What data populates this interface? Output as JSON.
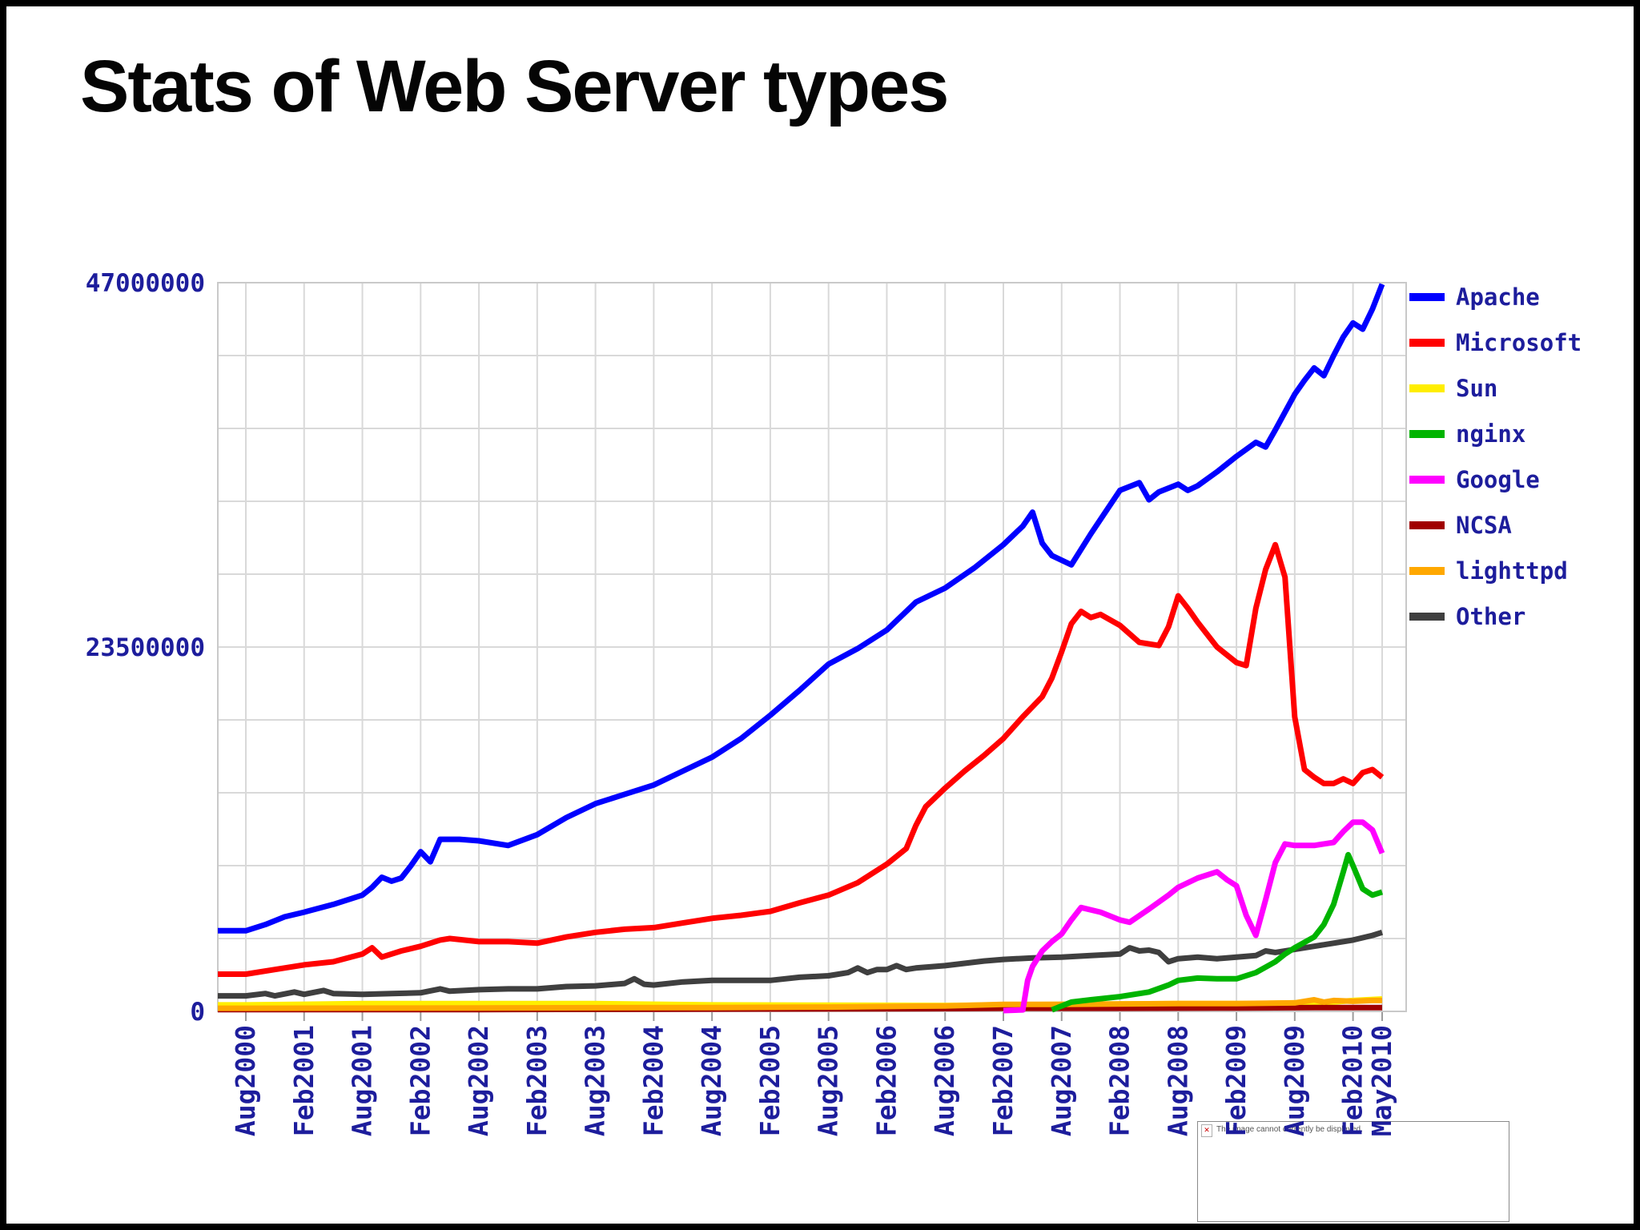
{
  "slide": {
    "title": "Stats of Web Server types"
  },
  "placeholder": {
    "text": "The image cannot currently be displayed."
  },
  "colors": {
    "axis_label": "#1d1d9c",
    "grid": "#d9d9d9",
    "frame": "#c9c9c9",
    "tick": "#9c9c9c",
    "title": "#050505"
  },
  "chart_data": {
    "type": "line",
    "title": "",
    "xlabel": "",
    "ylabel": "",
    "values_unit": "millions_of_sites",
    "ylim": [
      0,
      47000000
    ],
    "y_gridline_step": 4700000,
    "grid": true,
    "legend_position": "right",
    "y_ticks": [
      {
        "value": 47000000,
        "label": "47000000"
      },
      {
        "value": 23500000,
        "label": "23500000"
      },
      {
        "value": 0,
        "label": "0"
      }
    ],
    "x_max_month": 117,
    "x_ticks": [
      {
        "month": 0,
        "label": "Aug2000"
      },
      {
        "month": 6,
        "label": "Feb2001"
      },
      {
        "month": 12,
        "label": "Aug2001"
      },
      {
        "month": 18,
        "label": "Feb2002"
      },
      {
        "month": 24,
        "label": "Aug2002"
      },
      {
        "month": 30,
        "label": "Feb2003"
      },
      {
        "month": 36,
        "label": "Aug2003"
      },
      {
        "month": 42,
        "label": "Feb2004"
      },
      {
        "month": 48,
        "label": "Aug2004"
      },
      {
        "month": 54,
        "label": "Feb2005"
      },
      {
        "month": 60,
        "label": "Aug2005"
      },
      {
        "month": 66,
        "label": "Feb2006"
      },
      {
        "month": 72,
        "label": "Aug2006"
      },
      {
        "month": 78,
        "label": "Feb2007"
      },
      {
        "month": 84,
        "label": "Aug2007"
      },
      {
        "month": 90,
        "label": "Feb2008"
      },
      {
        "month": 96,
        "label": "Aug2008"
      },
      {
        "month": 102,
        "label": "Feb2009"
      },
      {
        "month": 108,
        "label": "Aug2009"
      },
      {
        "month": 114,
        "label": "Feb2010"
      },
      {
        "month": 117,
        "label": "May2010"
      }
    ],
    "series": [
      {
        "name": "Apache",
        "color": "#0000ff",
        "points": [
          [
            0,
            5.2
          ],
          [
            2,
            5.6
          ],
          [
            4,
            6.1
          ],
          [
            6,
            6.4
          ],
          [
            9,
            6.9
          ],
          [
            12,
            7.5
          ],
          [
            13,
            8.0
          ],
          [
            14,
            8.65
          ],
          [
            15,
            8.4
          ],
          [
            16,
            8.6
          ],
          [
            17,
            9.4
          ],
          [
            18,
            10.3
          ],
          [
            19,
            9.65
          ],
          [
            20,
            11.1
          ],
          [
            22,
            11.1
          ],
          [
            24,
            11.0
          ],
          [
            27,
            10.7
          ],
          [
            30,
            11.4
          ],
          [
            33,
            12.5
          ],
          [
            36,
            13.4
          ],
          [
            39,
            14.0
          ],
          [
            42,
            14.6
          ],
          [
            45,
            15.5
          ],
          [
            48,
            16.4
          ],
          [
            51,
            17.6
          ],
          [
            54,
            19.1
          ],
          [
            57,
            20.7
          ],
          [
            60,
            22.4
          ],
          [
            63,
            23.4
          ],
          [
            66,
            24.6
          ],
          [
            69,
            26.4
          ],
          [
            72,
            27.3
          ],
          [
            75,
            28.6
          ],
          [
            78,
            30.1
          ],
          [
            80,
            31.3
          ],
          [
            81,
            32.2
          ],
          [
            82,
            30.2
          ],
          [
            83,
            29.4
          ],
          [
            85,
            28.8
          ],
          [
            87,
            30.8
          ],
          [
            90,
            33.6
          ],
          [
            92,
            34.1
          ],
          [
            93,
            33.0
          ],
          [
            94,
            33.5
          ],
          [
            96,
            34.0
          ],
          [
            97,
            33.6
          ],
          [
            98,
            33.9
          ],
          [
            100,
            34.8
          ],
          [
            102,
            35.8
          ],
          [
            104,
            36.7
          ],
          [
            105,
            36.4
          ],
          [
            106,
            37.5
          ],
          [
            108,
            39.8
          ],
          [
            109,
            40.7
          ],
          [
            110,
            41.5
          ],
          [
            111,
            41.0
          ],
          [
            112,
            42.3
          ],
          [
            113,
            43.5
          ],
          [
            114,
            44.4
          ],
          [
            115,
            44.0
          ],
          [
            116,
            45.3
          ],
          [
            117,
            46.9
          ]
        ]
      },
      {
        "name": "Microsoft",
        "color": "#ff0000",
        "points": [
          [
            0,
            2.4
          ],
          [
            3,
            2.7
          ],
          [
            6,
            3.0
          ],
          [
            9,
            3.2
          ],
          [
            12,
            3.7
          ],
          [
            13,
            4.1
          ],
          [
            14,
            3.5
          ],
          [
            16,
            3.9
          ],
          [
            18,
            4.2
          ],
          [
            20,
            4.6
          ],
          [
            21,
            4.7
          ],
          [
            24,
            4.5
          ],
          [
            27,
            4.5
          ],
          [
            30,
            4.4
          ],
          [
            33,
            4.8
          ],
          [
            36,
            5.1
          ],
          [
            39,
            5.3
          ],
          [
            42,
            5.4
          ],
          [
            45,
            5.7
          ],
          [
            48,
            6.0
          ],
          [
            51,
            6.2
          ],
          [
            54,
            6.45
          ],
          [
            57,
            7.0
          ],
          [
            60,
            7.5
          ],
          [
            63,
            8.3
          ],
          [
            66,
            9.5
          ],
          [
            68,
            10.5
          ],
          [
            69,
            12.0
          ],
          [
            70,
            13.2
          ],
          [
            72,
            14.4
          ],
          [
            74,
            15.5
          ],
          [
            76,
            16.5
          ],
          [
            78,
            17.6
          ],
          [
            80,
            19.0
          ],
          [
            82,
            20.3
          ],
          [
            83,
            21.5
          ],
          [
            84,
            23.2
          ],
          [
            85,
            25.0
          ],
          [
            86,
            25.8
          ],
          [
            87,
            25.4
          ],
          [
            88,
            25.6
          ],
          [
            90,
            24.9
          ],
          [
            92,
            23.8
          ],
          [
            94,
            23.6
          ],
          [
            95,
            24.8
          ],
          [
            96,
            26.8
          ],
          [
            97,
            26.0
          ],
          [
            98,
            25.1
          ],
          [
            100,
            23.5
          ],
          [
            102,
            22.5
          ],
          [
            103,
            22.3
          ],
          [
            104,
            26.0
          ],
          [
            105,
            28.5
          ],
          [
            106,
            30.1
          ],
          [
            107,
            28.0
          ],
          [
            108,
            19.0
          ],
          [
            109,
            15.6
          ],
          [
            110,
            15.1
          ],
          [
            111,
            14.7
          ],
          [
            112,
            14.7
          ],
          [
            113,
            15.0
          ],
          [
            114,
            14.7
          ],
          [
            115,
            15.4
          ],
          [
            116,
            15.6
          ],
          [
            117,
            15.1
          ]
        ]
      },
      {
        "name": "Sun",
        "color": "#ffee00",
        "points": [
          [
            0,
            0.42
          ],
          [
            12,
            0.5
          ],
          [
            24,
            0.5
          ],
          [
            36,
            0.5
          ],
          [
            48,
            0.42
          ],
          [
            60,
            0.4
          ],
          [
            72,
            0.38
          ],
          [
            84,
            0.45
          ],
          [
            96,
            0.5
          ],
          [
            104,
            0.5
          ],
          [
            108,
            0.55
          ],
          [
            112,
            0.6
          ],
          [
            114,
            0.7
          ],
          [
            117,
            0.8
          ]
        ]
      },
      {
        "name": "nginx",
        "color": "#00b400",
        "points": [
          [
            83,
            0.1
          ],
          [
            85,
            0.6
          ],
          [
            87,
            0.75
          ],
          [
            90,
            0.95
          ],
          [
            93,
            1.25
          ],
          [
            95,
            1.7
          ],
          [
            96,
            2.0
          ],
          [
            98,
            2.15
          ],
          [
            100,
            2.1
          ],
          [
            102,
            2.1
          ],
          [
            104,
            2.5
          ],
          [
            106,
            3.2
          ],
          [
            107,
            3.7
          ],
          [
            108,
            4.1
          ],
          [
            110,
            4.8
          ],
          [
            111,
            5.6
          ],
          [
            112,
            6.9
          ],
          [
            113,
            9.0
          ],
          [
            113.5,
            10.1
          ],
          [
            114,
            9.4
          ],
          [
            115,
            7.9
          ],
          [
            116,
            7.5
          ],
          [
            117,
            7.7
          ]
        ]
      },
      {
        "name": "Google",
        "color": "#ff00ff",
        "points": [
          [
            78,
            0.05
          ],
          [
            80,
            0.1
          ],
          [
            80.5,
            2.0
          ],
          [
            81,
            2.9
          ],
          [
            82,
            3.9
          ],
          [
            83,
            4.5
          ],
          [
            84,
            5.0
          ],
          [
            85,
            5.9
          ],
          [
            86,
            6.7
          ],
          [
            88,
            6.4
          ],
          [
            90,
            5.9
          ],
          [
            91,
            5.75
          ],
          [
            93,
            6.6
          ],
          [
            95,
            7.5
          ],
          [
            96,
            8.0
          ],
          [
            98,
            8.6
          ],
          [
            100,
            9.0
          ],
          [
            101,
            8.5
          ],
          [
            102,
            8.1
          ],
          [
            103,
            6.2
          ],
          [
            104,
            4.9
          ],
          [
            105,
            7.2
          ],
          [
            106,
            9.6
          ],
          [
            107,
            10.8
          ],
          [
            108,
            10.7
          ],
          [
            110,
            10.7
          ],
          [
            112,
            10.9
          ],
          [
            113,
            11.6
          ],
          [
            114,
            12.2
          ],
          [
            115,
            12.2
          ],
          [
            116,
            11.7
          ],
          [
            117,
            10.2
          ]
        ]
      },
      {
        "name": "NCSA",
        "color": "#a00000",
        "points": [
          [
            0,
            0.12
          ],
          [
            24,
            0.12
          ],
          [
            48,
            0.15
          ],
          [
            72,
            0.18
          ],
          [
            78,
            0.2
          ],
          [
            90,
            0.2
          ],
          [
            102,
            0.22
          ],
          [
            110,
            0.25
          ],
          [
            117,
            0.25
          ]
        ]
      },
      {
        "name": "lighttpd",
        "color": "#ffa800",
        "points": [
          [
            0,
            0.2
          ],
          [
            24,
            0.22
          ],
          [
            48,
            0.25
          ],
          [
            60,
            0.28
          ],
          [
            72,
            0.35
          ],
          [
            78,
            0.45
          ],
          [
            84,
            0.45
          ],
          [
            90,
            0.48
          ],
          [
            96,
            0.5
          ],
          [
            102,
            0.5
          ],
          [
            108,
            0.55
          ],
          [
            110,
            0.75
          ],
          [
            111,
            0.6
          ],
          [
            112,
            0.7
          ],
          [
            114,
            0.65
          ],
          [
            116,
            0.7
          ],
          [
            117,
            0.7
          ]
        ]
      },
      {
        "name": "Other",
        "color": "#3f3f3f",
        "points": [
          [
            0,
            1.0
          ],
          [
            2,
            1.15
          ],
          [
            3,
            1.0
          ],
          [
            5,
            1.25
          ],
          [
            6,
            1.1
          ],
          [
            8,
            1.35
          ],
          [
            9,
            1.15
          ],
          [
            12,
            1.1
          ],
          [
            15,
            1.15
          ],
          [
            18,
            1.2
          ],
          [
            20,
            1.45
          ],
          [
            21,
            1.3
          ],
          [
            24,
            1.4
          ],
          [
            27,
            1.45
          ],
          [
            30,
            1.45
          ],
          [
            33,
            1.6
          ],
          [
            36,
            1.65
          ],
          [
            39,
            1.8
          ],
          [
            40,
            2.1
          ],
          [
            41,
            1.75
          ],
          [
            42,
            1.7
          ],
          [
            45,
            1.9
          ],
          [
            48,
            2.0
          ],
          [
            51,
            2.0
          ],
          [
            54,
            2.0
          ],
          [
            57,
            2.2
          ],
          [
            60,
            2.3
          ],
          [
            62,
            2.5
          ],
          [
            63,
            2.8
          ],
          [
            64,
            2.5
          ],
          [
            65,
            2.7
          ],
          [
            66,
            2.7
          ],
          [
            67,
            2.95
          ],
          [
            68,
            2.7
          ],
          [
            69,
            2.8
          ],
          [
            72,
            2.95
          ],
          [
            74,
            3.1
          ],
          [
            76,
            3.25
          ],
          [
            78,
            3.35
          ],
          [
            81,
            3.45
          ],
          [
            84,
            3.5
          ],
          [
            87,
            3.6
          ],
          [
            90,
            3.7
          ],
          [
            91,
            4.1
          ],
          [
            92,
            3.9
          ],
          [
            93,
            3.95
          ],
          [
            94,
            3.8
          ],
          [
            95,
            3.2
          ],
          [
            96,
            3.4
          ],
          [
            98,
            3.5
          ],
          [
            100,
            3.4
          ],
          [
            102,
            3.5
          ],
          [
            104,
            3.6
          ],
          [
            105,
            3.9
          ],
          [
            106,
            3.8
          ],
          [
            108,
            4.0
          ],
          [
            110,
            4.2
          ],
          [
            112,
            4.4
          ],
          [
            114,
            4.6
          ],
          [
            116,
            4.9
          ],
          [
            117,
            5.1
          ]
        ]
      }
    ]
  }
}
